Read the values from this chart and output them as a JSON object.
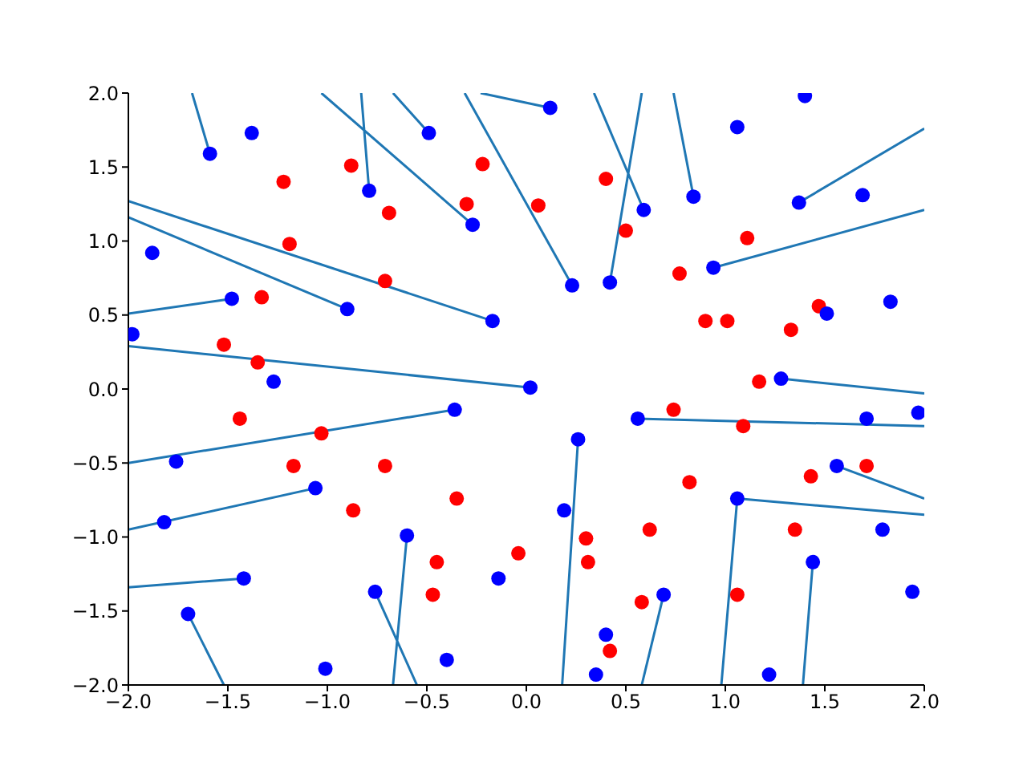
{
  "chart_data": {
    "type": "scatter",
    "xlim": [
      -2,
      2
    ],
    "ylim": [
      -2,
      2
    ],
    "xticks": [
      {
        "value": -2,
        "label": "−2.0"
      },
      {
        "value": -1.5,
        "label": "−1.5"
      },
      {
        "value": -1,
        "label": "−1.0"
      },
      {
        "value": -0.5,
        "label": "−0.5"
      },
      {
        "value": 0,
        "label": "0.0"
      },
      {
        "value": 0.5,
        "label": "0.5"
      },
      {
        "value": 1,
        "label": "1.0"
      },
      {
        "value": 1.5,
        "label": "1.5"
      },
      {
        "value": 2,
        "label": "2.0"
      }
    ],
    "yticks": [
      {
        "value": -2,
        "label": "−2.0"
      },
      {
        "value": -1.5,
        "label": "−1.5"
      },
      {
        "value": -1,
        "label": "−1.0"
      },
      {
        "value": -0.5,
        "label": "−0.5"
      },
      {
        "value": 0,
        "label": "0.0"
      },
      {
        "value": 0.5,
        "label": "0.5"
      },
      {
        "value": 1,
        "label": "1.0"
      },
      {
        "value": 1.5,
        "label": "1.5"
      },
      {
        "value": 2,
        "label": "2.0"
      }
    ],
    "series": [
      {
        "marker": "circle",
        "color": "#ff0000",
        "x": [
          -1.22,
          -0.88,
          -0.22,
          0.4,
          1.11,
          1.47,
          1.33,
          1.43,
          1.71,
          1.35,
          1.06,
          0.58,
          0.31,
          -0.04,
          -0.45,
          -0.87,
          -1.17,
          -1.52,
          -1.33,
          -1.19,
          -0.69,
          -0.3,
          0.06,
          0.5,
          0.77,
          1.01,
          1.17,
          1.09,
          0.82,
          0.62,
          0.3,
          -0.35,
          -0.71,
          -1.03,
          -1.35,
          -1.44,
          -0.47,
          0.42,
          0.74,
          -0.71,
          0.9
        ],
        "values": [
          1.4,
          1.51,
          1.52,
          1.42,
          1.02,
          0.56,
          0.4,
          -0.59,
          -0.52,
          -0.95,
          -1.39,
          -1.44,
          -1.17,
          -1.11,
          -1.17,
          -0.82,
          -0.52,
          0.3,
          0.62,
          0.98,
          1.19,
          1.25,
          1.24,
          1.07,
          0.78,
          0.46,
          0.05,
          -0.25,
          -0.63,
          -0.95,
          -1.01,
          -0.74,
          -0.52,
          -0.3,
          0.18,
          -0.2,
          -1.39,
          -1.77,
          -0.14,
          0.73,
          0.46
        ]
      },
      {
        "marker": "circle",
        "color": "#0000ff",
        "x": [
          -1.38,
          0.12,
          1.4,
          -0.49,
          1.06,
          1.69,
          1.83,
          1.97,
          1.79,
          1.94,
          1.22,
          0.35,
          -0.4,
          -1.01,
          -1.7,
          -1.82,
          -1.98,
          -1.88,
          -1.59,
          0.84,
          0.23,
          0.42,
          -0.17,
          0.02,
          0.56,
          0.26,
          -0.36,
          -0.9,
          -1.27,
          -1.06,
          -0.6,
          -0.14,
          0.69,
          1.06,
          1.28,
          1.51,
          0.94,
          0.59,
          -0.27,
          -0.79,
          -1.48,
          -1.76,
          -1.42,
          -0.76,
          0.4,
          1.44,
          1.56,
          1.71,
          1.37,
          0.19
        ],
        "values": [
          1.73,
          1.9,
          1.98,
          1.73,
          1.77,
          1.31,
          0.59,
          -0.16,
          -0.95,
          -1.37,
          -1.93,
          -1.93,
          -1.83,
          -1.89,
          -1.52,
          -0.9,
          0.37,
          0.92,
          1.59,
          1.3,
          0.7,
          0.72,
          0.46,
          0.01,
          -0.2,
          -0.34,
          -0.14,
          0.54,
          0.05,
          -0.67,
          -0.99,
          -1.28,
          -1.39,
          -0.74,
          0.07,
          0.51,
          0.82,
          1.21,
          1.11,
          1.34,
          0.61,
          -0.49,
          -1.28,
          -1.37,
          -1.66,
          -1.17,
          -0.52,
          -0.2,
          1.26,
          -0.82
        ]
      },
      {
        "type": "line",
        "marker": "none",
        "color": "#1f77b4",
        "x": [
          -2,
          -0.17,
          null,
          -2,
          -0.9,
          null,
          -2,
          -1.48,
          null,
          -2,
          0.02,
          null,
          -2,
          -0.36,
          null,
          -2,
          -1.06,
          null,
          -2,
          -1.42,
          null,
          -1.68,
          -1.59,
          null,
          -1.03,
          -0.27,
          null,
          -0.83,
          -0.79,
          null,
          -0.67,
          -0.49,
          null,
          -0.31,
          0.23,
          null,
          -0.23,
          0.12,
          null,
          0.34,
          0.59,
          null,
          0.58,
          0.42,
          null,
          0.74,
          0.84,
          null,
          2,
          1.37,
          null,
          2,
          0.94,
          null,
          2,
          1.28,
          null,
          2,
          0.56,
          null,
          2,
          1.56,
          null,
          2,
          1.06,
          null,
          -1.52,
          -1.7,
          null,
          -0.67,
          -0.6,
          null,
          -0.55,
          -0.76,
          null,
          0.18,
          0.26,
          null,
          0.58,
          0.69,
          null,
          0.98,
          1.06,
          null,
          1.39,
          1.44
        ],
        "values": [
          1.27,
          0.46,
          null,
          1.16,
          0.54,
          null,
          0.51,
          0.61,
          null,
          0.29,
          0.01,
          null,
          -0.5,
          -0.14,
          null,
          -0.95,
          -0.67,
          null,
          -1.34,
          -1.28,
          null,
          2,
          1.59,
          null,
          2,
          1.11,
          null,
          2,
          1.34,
          null,
          2,
          1.73,
          null,
          2,
          0.7,
          null,
          2,
          1.9,
          null,
          2,
          1.21,
          null,
          2,
          0.72,
          null,
          2,
          1.3,
          null,
          1.76,
          1.26,
          null,
          1.21,
          0.82,
          null,
          -0.03,
          0.07,
          null,
          -0.25,
          -0.2,
          null,
          -0.74,
          -0.52,
          null,
          -0.85,
          -0.74,
          null,
          -2,
          -1.52,
          null,
          -2,
          -0.99,
          null,
          -2,
          -1.37,
          null,
          -2,
          -0.34,
          null,
          -2,
          -1.39,
          null,
          -2,
          -0.74,
          null,
          -2,
          -1.17
        ]
      }
    ]
  }
}
